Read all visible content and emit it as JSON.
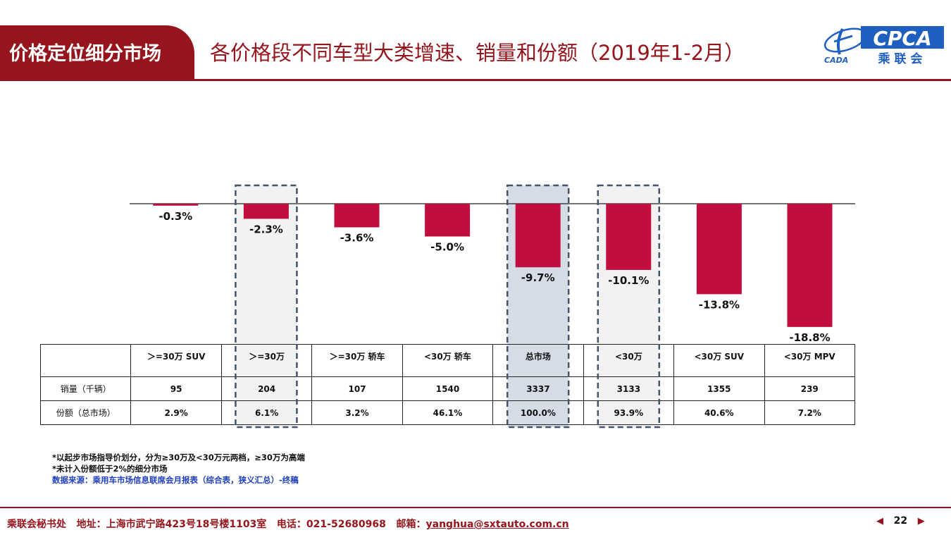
{
  "header": {
    "section": "价格定位细分市场",
    "title": "各价格段不同车型大类增速、销量和份额（2019年1-2月）",
    "logo_text": "CPCA",
    "logo_subtext": "乘联会",
    "logo_left_text": "CADA"
  },
  "chart_data": {
    "type": "bar",
    "title": "",
    "categories": [
      ">=30万 SUV",
      ">=30万",
      ">=30万 轿车",
      "<30万 轿车",
      "总市场",
      "<30万",
      "<30万 SUV",
      "<30万 MPV"
    ],
    "values": [
      -0.3,
      -2.3,
      -3.6,
      -5.0,
      -9.7,
      -10.1,
      -13.8,
      -18.8
    ],
    "value_labels": [
      "-0.3%",
      "-2.3%",
      "-3.6%",
      "-5.0%",
      "-9.7%",
      "-10.1%",
      "-13.8%",
      "-18.8%"
    ],
    "unit": "%",
    "ylim": [
      -20,
      0
    ],
    "bar_color": "#c20e3f",
    "highlighted_categories": [
      ">=30万",
      "总市场",
      "<30万"
    ],
    "highlight_fill": "#f2f2f2",
    "highlight_fill_strong": "#d6dce5",
    "highlight_border": "#44546a",
    "grid": false
  },
  "table": {
    "headers": [
      "",
      "＞=30万 SUV",
      "＞=30万",
      "＞=30万 轿车",
      "<30万 轿车",
      "总市场",
      "<30万",
      "<30万 SUV",
      "<30万 MPV"
    ],
    "rows": [
      {
        "label": "销量（千辆）",
        "cells": [
          "95",
          "204",
          "107",
          "1540",
          "3337",
          "3133",
          "1355",
          "239"
        ]
      },
      {
        "label": "份额（总市场）",
        "cells": [
          "2.9%",
          "6.1%",
          "3.2%",
          "46.1%",
          "100.0%",
          "93.9%",
          "40.6%",
          "7.2%"
        ]
      }
    ]
  },
  "notes": {
    "note1": "*以起步市场指导价划分，分为≥30万及<30万元两档，≥30万为高端",
    "note2": "*未计入份额低于2%的细分市场",
    "source": "数据来源：乘用车市场信息联席会月报表（综合表，狭义汇总）-终稿"
  },
  "footer": {
    "org": "乘联会秘书处",
    "address": "地址：上海市武宁路423号18号楼1103室",
    "phone": "电话：021-52680968",
    "email_label": "邮箱：",
    "email": "yanghua@sxtauto.com.cn",
    "page": "22"
  }
}
